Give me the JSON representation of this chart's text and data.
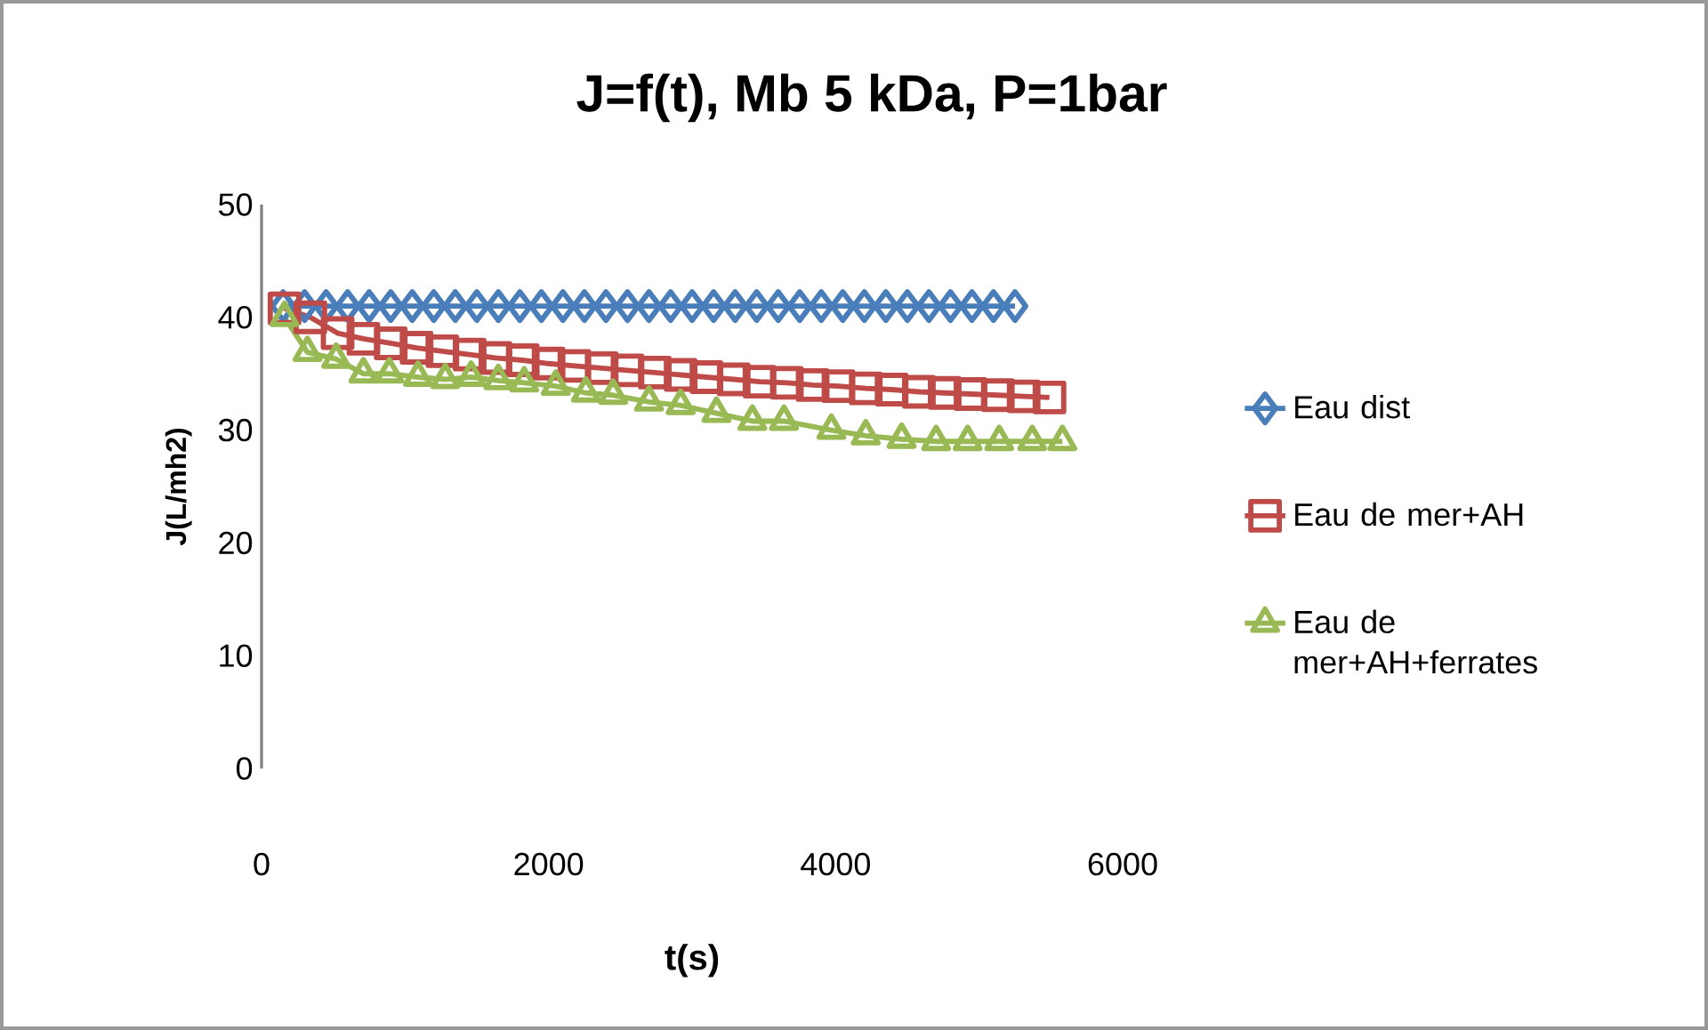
{
  "chart_data": {
    "type": "line",
    "title": "J=f(t), Mb 5 kDa, P=1bar",
    "xlabel": "t(s)",
    "ylabel": "J(L/mh2)",
    "xlim": [
      0,
      6000
    ],
    "xticks": [
      0,
      2000,
      4000,
      6000
    ],
    "ylim": [
      0,
      50
    ],
    "yticks": [
      0,
      10,
      20,
      30,
      40,
      50
    ],
    "grid": false,
    "legend": "right",
    "line_style": "solid",
    "series": [
      {
        "name": "Eau dist",
        "color": "#4a7ebb",
        "marker": "diamond",
        "x": [
          150,
          300,
          450,
          600,
          750,
          900,
          1050,
          1200,
          1350,
          1500,
          1650,
          1800,
          1950,
          2100,
          2250,
          2400,
          2550,
          2700,
          2850,
          3000,
          3150,
          3300,
          3450,
          3600,
          3750,
          3900,
          4050,
          4200,
          4350,
          4500,
          4650,
          4800,
          4950,
          5100,
          5250
        ],
        "values": [
          41,
          41,
          41,
          41,
          41,
          41,
          41,
          41,
          41,
          41,
          41,
          41,
          41,
          41,
          41,
          41,
          41,
          41,
          41,
          41,
          41,
          41,
          41,
          41,
          41,
          41,
          41,
          41,
          41,
          41,
          41,
          41,
          41,
          41,
          41
        ]
      },
      {
        "name": "Eau de mer+AH",
        "color": "#be4b48",
        "marker": "square",
        "x": [
          160,
          340,
          530,
          710,
          900,
          1080,
          1260,
          1450,
          1630,
          1820,
          2000,
          2180,
          2370,
          2550,
          2740,
          2920,
          3100,
          3290,
          3470,
          3660,
          3840,
          4020,
          4210,
          4390,
          4580,
          4760,
          4940,
          5130,
          5310,
          5490
        ],
        "values": [
          40.8,
          40.0,
          38.6,
          38.1,
          37.7,
          37.3,
          37.0,
          36.7,
          36.4,
          36.2,
          35.9,
          35.7,
          35.5,
          35.3,
          35.1,
          34.9,
          34.7,
          34.5,
          34.3,
          34.2,
          34.0,
          33.9,
          33.7,
          33.6,
          33.4,
          33.3,
          33.2,
          33.1,
          33.0,
          32.9
        ]
      },
      {
        "name": "Eau de mer+AH+ferrates",
        "color": "#98b954",
        "marker": "triangle",
        "x": [
          160,
          320,
          520,
          710,
          890,
          1090,
          1280,
          1460,
          1650,
          1830,
          2050,
          2260,
          2450,
          2700,
          2920,
          3170,
          3420,
          3640,
          3970,
          4210,
          4460,
          4700,
          4920,
          5140,
          5370,
          5580
        ],
        "values": [
          40.0,
          36.9,
          36.3,
          35.0,
          35.0,
          34.7,
          34.5,
          34.7,
          34.4,
          34.2,
          33.9,
          33.3,
          33.1,
          32.5,
          32.2,
          31.5,
          30.8,
          30.8,
          30.0,
          29.5,
          29.2,
          29.0,
          29.0,
          29.0,
          29.0,
          29.0
        ]
      }
    ]
  }
}
